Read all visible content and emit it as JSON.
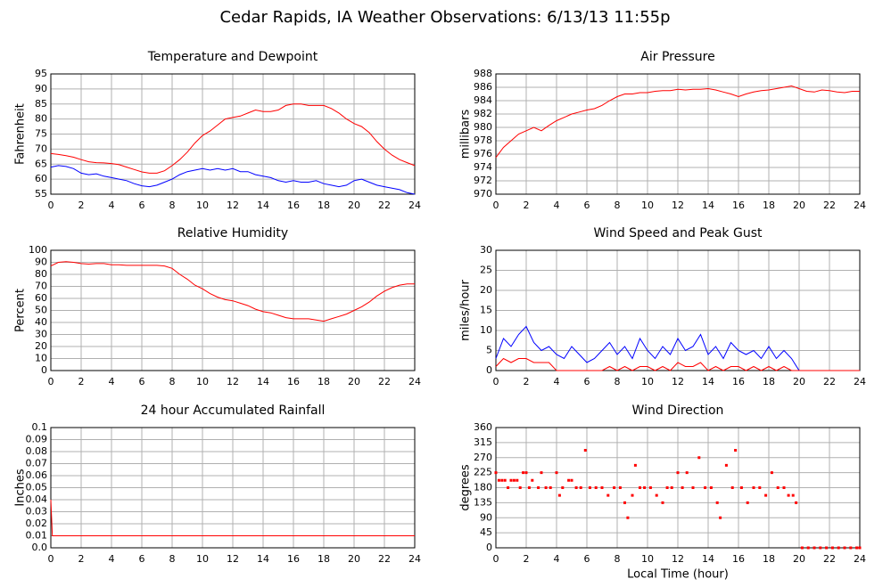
{
  "title": "Cedar Rapids, IA Weather Observations: 6/13/13 11:55p",
  "chart_data": [
    {
      "type": "line",
      "title": "Temperature and Dewpoint",
      "ylabel": "Fahrenheit",
      "xlim": [
        0,
        24
      ],
      "xticks": [
        0,
        2,
        4,
        6,
        8,
        10,
        12,
        14,
        16,
        18,
        20,
        22,
        24
      ],
      "ylim": [
        55,
        95
      ],
      "yticks": [
        55,
        60,
        65,
        70,
        75,
        80,
        85,
        90,
        95
      ],
      "grid": true,
      "x": [
        0,
        0.5,
        1,
        1.5,
        2,
        2.5,
        3,
        3.5,
        4,
        4.5,
        5,
        5.5,
        6,
        6.5,
        7,
        7.5,
        8,
        8.5,
        9,
        9.5,
        10,
        10.5,
        11,
        11.5,
        12,
        12.5,
        13,
        13.5,
        14,
        14.5,
        15,
        15.5,
        16,
        16.5,
        17,
        17.5,
        18,
        18.5,
        19,
        19.5,
        20,
        20.5,
        21,
        21.5,
        22,
        22.5,
        23,
        23.5,
        24
      ],
      "series": [
        {
          "color": "#ff0000",
          "values": [
            68.5,
            68.2,
            67.8,
            67.3,
            66.5,
            65.8,
            65.5,
            65.4,
            65.2,
            64.8,
            64.0,
            63.2,
            62.4,
            62.0,
            62.0,
            62.8,
            64.5,
            66.5,
            69,
            72,
            74.5,
            76,
            78,
            80,
            80.5,
            81,
            82,
            83,
            82.5,
            82.5,
            83,
            84.5,
            85,
            85,
            84.5,
            84.5,
            84.5,
            83.5,
            82,
            80,
            78.5,
            77.5,
            75.5,
            72.5,
            70,
            68,
            66.5,
            65.5,
            64.5
          ]
        },
        {
          "color": "#0000ff",
          "values": [
            64,
            64.5,
            64.2,
            63.5,
            62,
            61.5,
            61.8,
            61,
            60.5,
            60,
            59.5,
            58.5,
            57.8,
            57.5,
            58,
            59,
            60,
            61.5,
            62.5,
            63,
            63.5,
            63,
            63.5,
            63,
            63.5,
            62.5,
            62.5,
            61.5,
            61,
            60.5,
            59.5,
            59,
            59.5,
            59,
            59,
            59.5,
            58.5,
            58,
            57.5,
            58,
            59.5,
            60,
            59,
            58,
            57.5,
            57,
            56.5,
            55.5,
            55
          ]
        }
      ]
    },
    {
      "type": "line",
      "title": "Air Pressure",
      "ylabel": "millibars",
      "xlim": [
        0,
        24
      ],
      "xticks": [
        0,
        2,
        4,
        6,
        8,
        10,
        12,
        14,
        16,
        18,
        20,
        22,
        24
      ],
      "ylim": [
        970,
        988
      ],
      "yticks": [
        970,
        972,
        974,
        976,
        978,
        980,
        982,
        984,
        986,
        988
      ],
      "grid": true,
      "x": [
        0,
        0.5,
        1,
        1.5,
        2,
        2.5,
        3,
        3.5,
        4,
        4.5,
        5,
        5.5,
        6,
        6.5,
        7,
        7.5,
        8,
        8.5,
        9,
        9.5,
        10,
        10.5,
        11,
        11.5,
        12,
        12.5,
        13,
        13.5,
        14,
        14.5,
        15,
        15.5,
        16,
        16.5,
        17,
        17.5,
        18,
        18.5,
        19,
        19.5,
        20,
        20.5,
        21,
        21.5,
        22,
        22.5,
        23,
        23.5,
        24
      ],
      "series": [
        {
          "color": "#ff0000",
          "values": [
            975.5,
            977,
            978,
            979,
            979.5,
            980,
            979.5,
            980.3,
            981,
            981.5,
            982,
            982.3,
            982.6,
            982.8,
            983.3,
            984,
            984.6,
            985,
            985,
            985.2,
            985.2,
            985.4,
            985.5,
            985.5,
            985.7,
            985.6,
            985.7,
            985.7,
            985.8,
            985.6,
            985.3,
            985,
            984.6,
            985,
            985.3,
            985.5,
            985.6,
            985.8,
            986,
            986.2,
            985.8,
            985.4,
            985.3,
            985.6,
            985.5,
            985.3,
            985.2,
            985.4,
            985.4
          ]
        }
      ]
    },
    {
      "type": "line",
      "title": "Relative Humidity",
      "ylabel": "Percent",
      "xlim": [
        0,
        24
      ],
      "xticks": [
        0,
        2,
        4,
        6,
        8,
        10,
        12,
        14,
        16,
        18,
        20,
        22,
        24
      ],
      "ylim": [
        0,
        100
      ],
      "yticks": [
        0,
        10,
        20,
        30,
        40,
        50,
        60,
        70,
        80,
        90,
        100
      ],
      "grid": true,
      "x": [
        0,
        0.5,
        1,
        1.5,
        2,
        2.5,
        3,
        3.5,
        4,
        4.5,
        5,
        5.5,
        6,
        6.5,
        7,
        7.5,
        8,
        8.5,
        9,
        9.5,
        10,
        10.5,
        11,
        11.5,
        12,
        12.5,
        13,
        13.5,
        14,
        14.5,
        15,
        15.5,
        16,
        16.5,
        17,
        17.5,
        18,
        18.5,
        19,
        19.5,
        20,
        20.5,
        21,
        21.5,
        22,
        22.5,
        23,
        23.5,
        24
      ],
      "series": [
        {
          "color": "#ff0000",
          "values": [
            87,
            90,
            90.5,
            90,
            89,
            88.5,
            89,
            89,
            88,
            88,
            87.5,
            87.5,
            87.5,
            87.5,
            87.5,
            87,
            85,
            80,
            76,
            71,
            68,
            64,
            61,
            59,
            58,
            56,
            54,
            51,
            49,
            48,
            46,
            44,
            43,
            43,
            43,
            42,
            41,
            43,
            45,
            47,
            50,
            53,
            57,
            62,
            66,
            69,
            71,
            72,
            72
          ]
        }
      ]
    },
    {
      "type": "line",
      "title": "Wind Speed and Peak Gust",
      "ylabel": "miles/hour",
      "xlim": [
        0,
        24
      ],
      "xticks": [
        0,
        2,
        4,
        6,
        8,
        10,
        12,
        14,
        16,
        18,
        20,
        22,
        24
      ],
      "ylim": [
        0,
        30
      ],
      "yticks": [
        0,
        5,
        10,
        15,
        20,
        25,
        30
      ],
      "grid": true,
      "x": [
        0,
        0.5,
        1,
        1.5,
        2,
        2.5,
        3,
        3.5,
        4,
        4.5,
        5,
        5.5,
        6,
        6.5,
        7,
        7.5,
        8,
        8.5,
        9,
        9.5,
        10,
        10.5,
        11,
        11.5,
        12,
        12.5,
        13,
        13.5,
        14,
        14.5,
        15,
        15.5,
        16,
        16.5,
        17,
        17.5,
        18,
        18.5,
        19,
        19.5,
        20,
        20.5,
        21,
        21.5,
        22,
        22.5,
        23,
        23.5,
        24
      ],
      "series": [
        {
          "color": "#0000ff",
          "values": [
            3,
            8,
            6,
            9,
            11,
            7,
            5,
            6,
            4,
            3,
            6,
            4,
            2,
            3,
            5,
            7,
            4,
            6,
            3,
            8,
            5,
            3,
            6,
            4,
            8,
            5,
            6,
            9,
            4,
            6,
            3,
            7,
            5,
            4,
            5,
            3,
            6,
            3,
            5,
            3,
            0,
            0,
            0,
            0,
            0,
            0,
            0,
            0,
            0
          ]
        },
        {
          "color": "#ff0000",
          "values": [
            1,
            3,
            2,
            3,
            3,
            2,
            2,
            2,
            0,
            0,
            0,
            0,
            0,
            0,
            0,
            1,
            0,
            1,
            0,
            1,
            1,
            0,
            1,
            0,
            2,
            1,
            1,
            2,
            0,
            1,
            0,
            1,
            1,
            0,
            1,
            0,
            1,
            0,
            1,
            0,
            0,
            0,
            0,
            0,
            0,
            0,
            0,
            0,
            0
          ]
        }
      ]
    },
    {
      "type": "line",
      "title": "24 hour Accumulated Rainfall",
      "ylabel": "Inches",
      "xlim": [
        0,
        24
      ],
      "xticks": [
        0,
        2,
        4,
        6,
        8,
        10,
        12,
        14,
        16,
        18,
        20,
        22,
        24
      ],
      "ylim": [
        0,
        0.1
      ],
      "yticks": [
        {
          "value": 0,
          "label": "0.0"
        },
        0.01,
        0.02,
        0.03,
        0.04,
        0.05,
        0.06,
        0.07,
        0.08,
        0.09,
        0.1
      ],
      "grid": true,
      "x": [
        0,
        0.1,
        24
      ],
      "series": [
        {
          "color": "#ff0000",
          "values": [
            0.04,
            0.01,
            0.01
          ]
        }
      ]
    },
    {
      "type": "scatter",
      "title": "Wind Direction",
      "ylabel": "degrees",
      "xlabel": "Local Time (hour)",
      "xlim": [
        0,
        24
      ],
      "xticks": [
        0,
        2,
        4,
        6,
        8,
        10,
        12,
        14,
        16,
        18,
        20,
        22,
        24
      ],
      "ylim": [
        0,
        360
      ],
      "yticks": [
        0,
        45,
        90,
        135,
        180,
        225,
        270,
        315,
        360
      ],
      "grid": true,
      "x": [
        0,
        0.2,
        0.4,
        0.6,
        0.8,
        1,
        1.2,
        1.4,
        1.6,
        1.8,
        2,
        2.2,
        2.4,
        2.8,
        3,
        3.3,
        3.6,
        4,
        4.2,
        4.4,
        4.8,
        5,
        5.3,
        5.6,
        5.9,
        6.2,
        6.6,
        7,
        7.4,
        7.8,
        8.2,
        8.5,
        8.7,
        9,
        9.2,
        9.5,
        9.8,
        10.2,
        10.6,
        11,
        11.3,
        11.6,
        12,
        12.3,
        12.6,
        13,
        13.4,
        13.8,
        14.2,
        14.6,
        14.8,
        15.2,
        15.6,
        15.8,
        16.2,
        16.6,
        17,
        17.4,
        17.8,
        18.2,
        18.6,
        19,
        19.3,
        19.6,
        19.8,
        20.2,
        20.6,
        21,
        21.4,
        21.8,
        22.2,
        22.6,
        23,
        23.4,
        23.8,
        24
      ],
      "series": [
        {
          "color": "#ff0000",
          "values": [
            225,
            202,
            202,
            202,
            180,
            202,
            202,
            202,
            180,
            225,
            225,
            180,
            202,
            180,
            225,
            180,
            180,
            225,
            157,
            180,
            202,
            202,
            180,
            180,
            292,
            180,
            180,
            180,
            157,
            180,
            180,
            135,
            90,
            157,
            247,
            180,
            180,
            180,
            157,
            135,
            180,
            180,
            225,
            180,
            225,
            180,
            270,
            180,
            180,
            135,
            90,
            247,
            180,
            292,
            180,
            135,
            180,
            180,
            157,
            225,
            180,
            180,
            157,
            157,
            135,
            0,
            0,
            0,
            0,
            0,
            0,
            0,
            0,
            0,
            0,
            0
          ]
        }
      ]
    }
  ]
}
